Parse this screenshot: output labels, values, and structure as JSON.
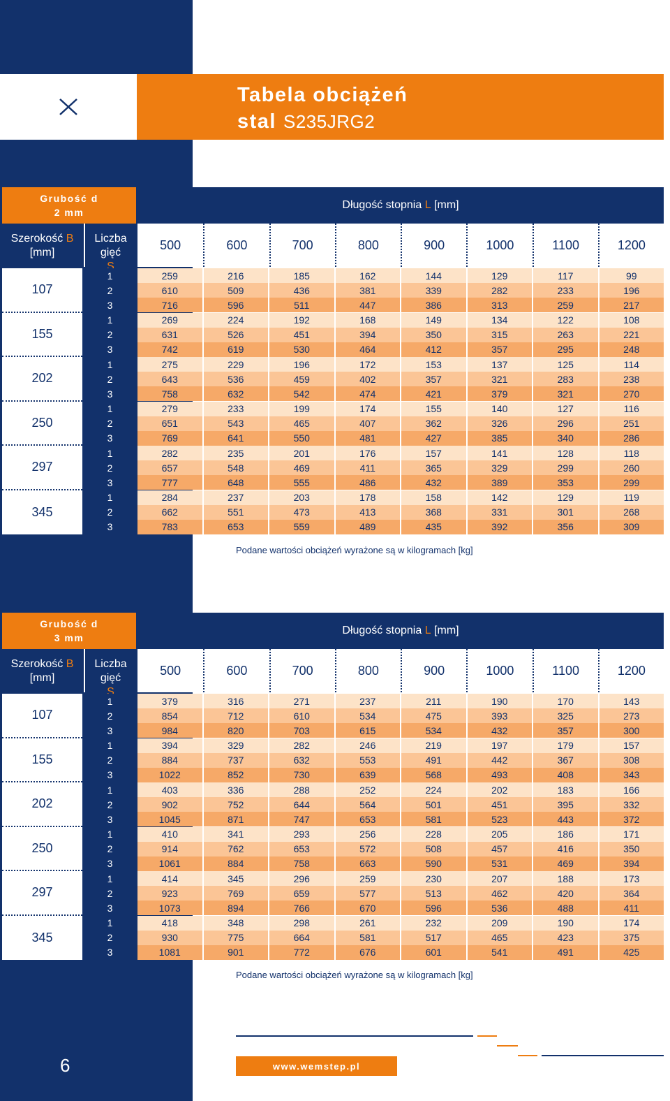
{
  "header": {
    "title_line1": "Tabela obciążeń",
    "title_bold": "stal",
    "title_grade": "S235JRG2",
    "logo_icon": "x-mark-icon"
  },
  "tables": [
    {
      "thickness_label": "Grubość d",
      "thickness_value": "2 mm",
      "length_prefix": "Długość stopnia ",
      "length_var": "L",
      "length_unit": " [mm]",
      "width_label": "Szerokość ",
      "width_var": "B",
      "width_unit": "[mm]",
      "bends_label": "Liczba gięć",
      "bends_var": "S",
      "lengths": [
        "500",
        "600",
        "700",
        "800",
        "900",
        "1000",
        "1100",
        "1200"
      ],
      "groups": [
        {
          "width": "107",
          "rows": [
            {
              "s": "1",
              "v": [
                "259",
                "216",
                "185",
                "162",
                "144",
                "129",
                "117",
                "99"
              ]
            },
            {
              "s": "2",
              "v": [
                "610",
                "509",
                "436",
                "381",
                "339",
                "282",
                "233",
                "196"
              ]
            },
            {
              "s": "3",
              "v": [
                "716",
                "596",
                "511",
                "447",
                "386",
                "313",
                "259",
                "217"
              ]
            }
          ]
        },
        {
          "width": "155",
          "rows": [
            {
              "s": "1",
              "v": [
                "269",
                "224",
                "192",
                "168",
                "149",
                "134",
                "122",
                "108"
              ]
            },
            {
              "s": "2",
              "v": [
                "631",
                "526",
                "451",
                "394",
                "350",
                "315",
                "263",
                "221"
              ]
            },
            {
              "s": "3",
              "v": [
                "742",
                "619",
                "530",
                "464",
                "412",
                "357",
                "295",
                "248"
              ]
            }
          ]
        },
        {
          "width": "202",
          "rows": [
            {
              "s": "1",
              "v": [
                "275",
                "229",
                "196",
                "172",
                "153",
                "137",
                "125",
                "114"
              ]
            },
            {
              "s": "2",
              "v": [
                "643",
                "536",
                "459",
                "402",
                "357",
                "321",
                "283",
                "238"
              ]
            },
            {
              "s": "3",
              "v": [
                "758",
                "632",
                "542",
                "474",
                "421",
                "379",
                "321",
                "270"
              ]
            }
          ]
        },
        {
          "width": "250",
          "rows": [
            {
              "s": "1",
              "v": [
                "279",
                "233",
                "199",
                "174",
                "155",
                "140",
                "127",
                "116"
              ]
            },
            {
              "s": "2",
              "v": [
                "651",
                "543",
                "465",
                "407",
                "362",
                "326",
                "296",
                "251"
              ]
            },
            {
              "s": "3",
              "v": [
                "769",
                "641",
                "550",
                "481",
                "427",
                "385",
                "340",
                "286"
              ]
            }
          ]
        },
        {
          "width": "297",
          "rows": [
            {
              "s": "1",
              "v": [
                "282",
                "235",
                "201",
                "176",
                "157",
                "141",
                "128",
                "118"
              ]
            },
            {
              "s": "2",
              "v": [
                "657",
                "548",
                "469",
                "411",
                "365",
                "329",
                "299",
                "260"
              ]
            },
            {
              "s": "3",
              "v": [
                "777",
                "648",
                "555",
                "486",
                "432",
                "389",
                "353",
                "299"
              ]
            }
          ]
        },
        {
          "width": "345",
          "rows": [
            {
              "s": "1",
              "v": [
                "284",
                "237",
                "203",
                "178",
                "158",
                "142",
                "129",
                "119"
              ]
            },
            {
              "s": "2",
              "v": [
                "662",
                "551",
                "473",
                "413",
                "368",
                "331",
                "301",
                "268"
              ]
            },
            {
              "s": "3",
              "v": [
                "783",
                "653",
                "559",
                "489",
                "435",
                "392",
                "356",
                "309"
              ]
            }
          ]
        }
      ],
      "note": "Podane wartości obciążeń wyrażone są w kilogramach [kg]"
    },
    {
      "thickness_label": "Grubość d",
      "thickness_value": "3 mm",
      "length_prefix": "Długość stopnia ",
      "length_var": "L",
      "length_unit": " [mm]",
      "width_label": "Szerokość ",
      "width_var": "B",
      "width_unit": "[mm]",
      "bends_label": "Liczba gięć",
      "bends_var": "S",
      "lengths": [
        "500",
        "600",
        "700",
        "800",
        "900",
        "1000",
        "1100",
        "1200"
      ],
      "groups": [
        {
          "width": "107",
          "rows": [
            {
              "s": "1",
              "v": [
                "379",
                "316",
                "271",
                "237",
                "211",
                "190",
                "170",
                "143"
              ]
            },
            {
              "s": "2",
              "v": [
                "854",
                "712",
                "610",
                "534",
                "475",
                "393",
                "325",
                "273"
              ]
            },
            {
              "s": "3",
              "v": [
                "984",
                "820",
                "703",
                "615",
                "534",
                "432",
                "357",
                "300"
              ]
            }
          ]
        },
        {
          "width": "155",
          "rows": [
            {
              "s": "1",
              "v": [
                "394",
                "329",
                "282",
                "246",
                "219",
                "197",
                "179",
                "157"
              ]
            },
            {
              "s": "2",
              "v": [
                "884",
                "737",
                "632",
                "553",
                "491",
                "442",
                "367",
                "308"
              ]
            },
            {
              "s": "3",
              "v": [
                "1022",
                "852",
                "730",
                "639",
                "568",
                "493",
                "408",
                "343"
              ]
            }
          ]
        },
        {
          "width": "202",
          "rows": [
            {
              "s": "1",
              "v": [
                "403",
                "336",
                "288",
                "252",
                "224",
                "202",
                "183",
                "166"
              ]
            },
            {
              "s": "2",
              "v": [
                "902",
                "752",
                "644",
                "564",
                "501",
                "451",
                "395",
                "332"
              ]
            },
            {
              "s": "3",
              "v": [
                "1045",
                "871",
                "747",
                "653",
                "581",
                "523",
                "443",
                "372"
              ]
            }
          ]
        },
        {
          "width": "250",
          "rows": [
            {
              "s": "1",
              "v": [
                "410",
                "341",
                "293",
                "256",
                "228",
                "205",
                "186",
                "171"
              ]
            },
            {
              "s": "2",
              "v": [
                "914",
                "762",
                "653",
                "572",
                "508",
                "457",
                "416",
                "350"
              ]
            },
            {
              "s": "3",
              "v": [
                "1061",
                "884",
                "758",
                "663",
                "590",
                "531",
                "469",
                "394"
              ]
            }
          ]
        },
        {
          "width": "297",
          "rows": [
            {
              "s": "1",
              "v": [
                "414",
                "345",
                "296",
                "259",
                "230",
                "207",
                "188",
                "173"
              ]
            },
            {
              "s": "2",
              "v": [
                "923",
                "769",
                "659",
                "577",
                "513",
                "462",
                "420",
                "364"
              ]
            },
            {
              "s": "3",
              "v": [
                "1073",
                "894",
                "766",
                "670",
                "596",
                "536",
                "488",
                "411"
              ]
            }
          ]
        },
        {
          "width": "345",
          "rows": [
            {
              "s": "1",
              "v": [
                "418",
                "348",
                "298",
                "261",
                "232",
                "209",
                "190",
                "174"
              ]
            },
            {
              "s": "2",
              "v": [
                "930",
                "775",
                "664",
                "581",
                "517",
                "465",
                "423",
                "375"
              ]
            },
            {
              "s": "3",
              "v": [
                "1081",
                "901",
                "772",
                "676",
                "601",
                "541",
                "491",
                "425"
              ]
            }
          ]
        }
      ],
      "note": "Podane wartości obciążeń wyrażone są w kilogramach [kg]"
    }
  ],
  "footer": {
    "url": "www.wemstep.pl",
    "page_number": "6"
  },
  "colors": {
    "navy": "#12316b",
    "orange": "#ee7d11",
    "row1": "#fde3c8",
    "row2": "#fbc596",
    "row3": "#f6a968"
  }
}
